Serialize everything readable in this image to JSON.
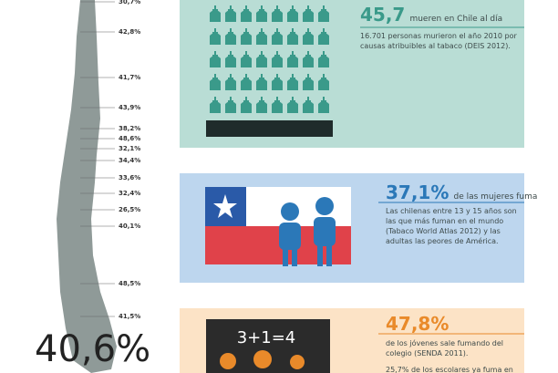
{
  "map": {
    "labels": [
      "30,7%",
      "42,8%",
      "41,7%",
      "43,9%",
      "38,2%",
      "48,6%",
      "32,1%",
      "34,4%",
      "33,6%",
      "32,4%",
      "26,5%",
      "40,1%",
      "48,5%",
      "41,5%"
    ],
    "total": "40,6%"
  },
  "panels": [
    {
      "figure": "45,7",
      "lead": "mueren en Chile al día",
      "text": "16.701 personas murieron el año 2010 por causas atribuibles al tabaco (DEIS 2012)."
    },
    {
      "figure": "37,1%",
      "lead": "de las mujeres fuma",
      "text": "Las chilenas entre 13 y 15 años son las que más fuman en el mundo (Tabaco World Atlas 2012) y las adultas las peores de América."
    },
    {
      "figure": "47,8%",
      "lead": "de los jóvenes sale fumando del colegio (SENDA 2011).",
      "text": "25,7% de los escolares ya fuma en",
      "blackboard": "3+1=4"
    }
  ]
}
